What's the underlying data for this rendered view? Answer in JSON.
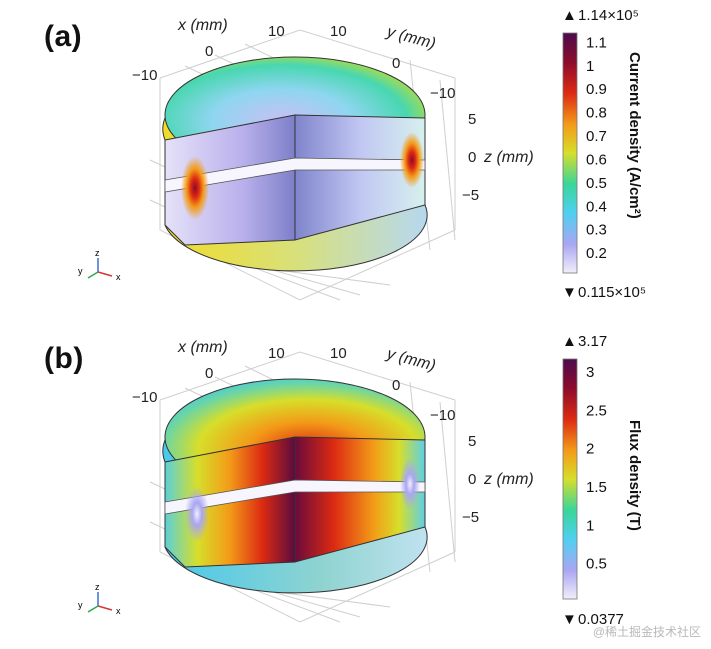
{
  "panels": [
    {
      "label": "(a)",
      "x_axis": {
        "label": "x (mm)",
        "ticks": [
          "−10",
          "0",
          "10"
        ]
      },
      "y_axis": {
        "label": "y (mm)",
        "ticks": [
          "10",
          "0",
          "−10"
        ]
      },
      "z_axis": {
        "label": "z (mm)",
        "ticks": [
          "5",
          "0",
          "−5"
        ]
      },
      "colorbar": {
        "title": "Current density (A/cm²)",
        "max_label": "1.14×10⁵",
        "min_label": "0.115×10⁵",
        "ticks": [
          "1.1",
          "1",
          "0.9",
          "0.8",
          "0.7",
          "0.6",
          "0.5",
          "0.4",
          "0.3",
          "0.2"
        ],
        "tick_values": [
          1.1,
          1.0,
          0.9,
          0.8,
          0.7,
          0.6,
          0.5,
          0.4,
          0.3,
          0.2
        ],
        "range": [
          0.115,
          1.14
        ]
      }
    },
    {
      "label": "(b)",
      "x_axis": {
        "label": "x (mm)",
        "ticks": [
          "−10",
          "0",
          "10"
        ]
      },
      "y_axis": {
        "label": "y (mm)",
        "ticks": [
          "10",
          "0",
          "−10"
        ]
      },
      "z_axis": {
        "label": "z (mm)",
        "ticks": [
          "5",
          "0",
          "−5"
        ]
      },
      "colorbar": {
        "title": "Flux density (T)",
        "max_label": "3.17",
        "min_label": "0.0377",
        "ticks": [
          "3",
          "2.5",
          "2",
          "1.5",
          "1",
          "0.5"
        ],
        "tick_values": [
          3,
          2.5,
          2,
          1.5,
          1,
          0.5
        ],
        "range": [
          0.0377,
          3.17
        ]
      }
    }
  ],
  "triad": {
    "x": "x",
    "y": "y",
    "z": "z"
  },
  "colormap": [
    "#f2eefa",
    "#a9a6f2",
    "#4fd0f0",
    "#38d69a",
    "#d7de2a",
    "#f39a18",
    "#dc2a12",
    "#8c0b2c",
    "#4c0b4e"
  ],
  "watermark": "@稀土掘金技术社区"
}
